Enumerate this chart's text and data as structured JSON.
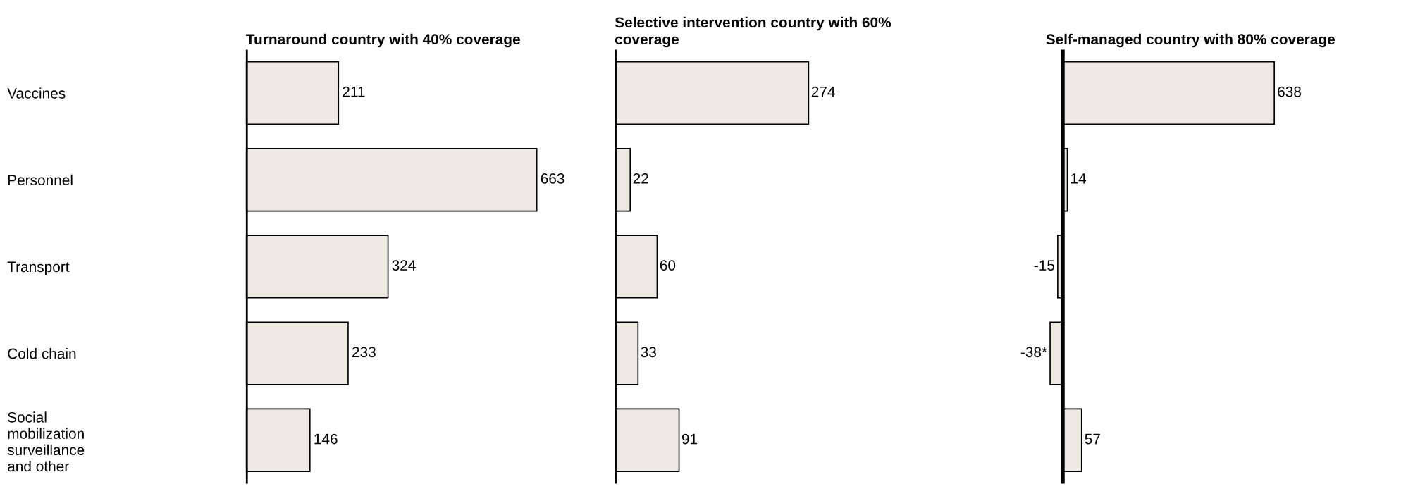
{
  "chart_data": [
    {
      "type": "bar",
      "orientation": "horizontal",
      "title": "Turnaround country with 40% coverage",
      "categories": [
        "Vaccines",
        "Personnel",
        "Transport",
        "Cold chain",
        "Social mobilization surveillance and other"
      ],
      "values": [
        211,
        663,
        324,
        233,
        146
      ],
      "value_labels": [
        "211",
        "663",
        "324",
        "233",
        "146"
      ],
      "color": "#ede9e2",
      "tick_labels": "y"
    },
    {
      "type": "bar",
      "orientation": "horizontal",
      "title": "Selective intervention country with 60% coverage",
      "values": [
        274,
        22,
        60,
        33,
        91
      ],
      "value_labels": [
        "274",
        "22",
        "60",
        "33",
        "91"
      ],
      "color": "#ede9e2",
      "tick_labels": false
    },
    {
      "type": "bar",
      "orientation": "horizontal",
      "title": "Self-managed country with 80% coverage",
      "values": [
        638,
        14,
        -15,
        -38,
        57
      ],
      "value_labels": [
        "638",
        "14",
        "-15",
        "-38*",
        "57"
      ],
      "color": "#ede9e2",
      "tick_labels": false
    }
  ]
}
